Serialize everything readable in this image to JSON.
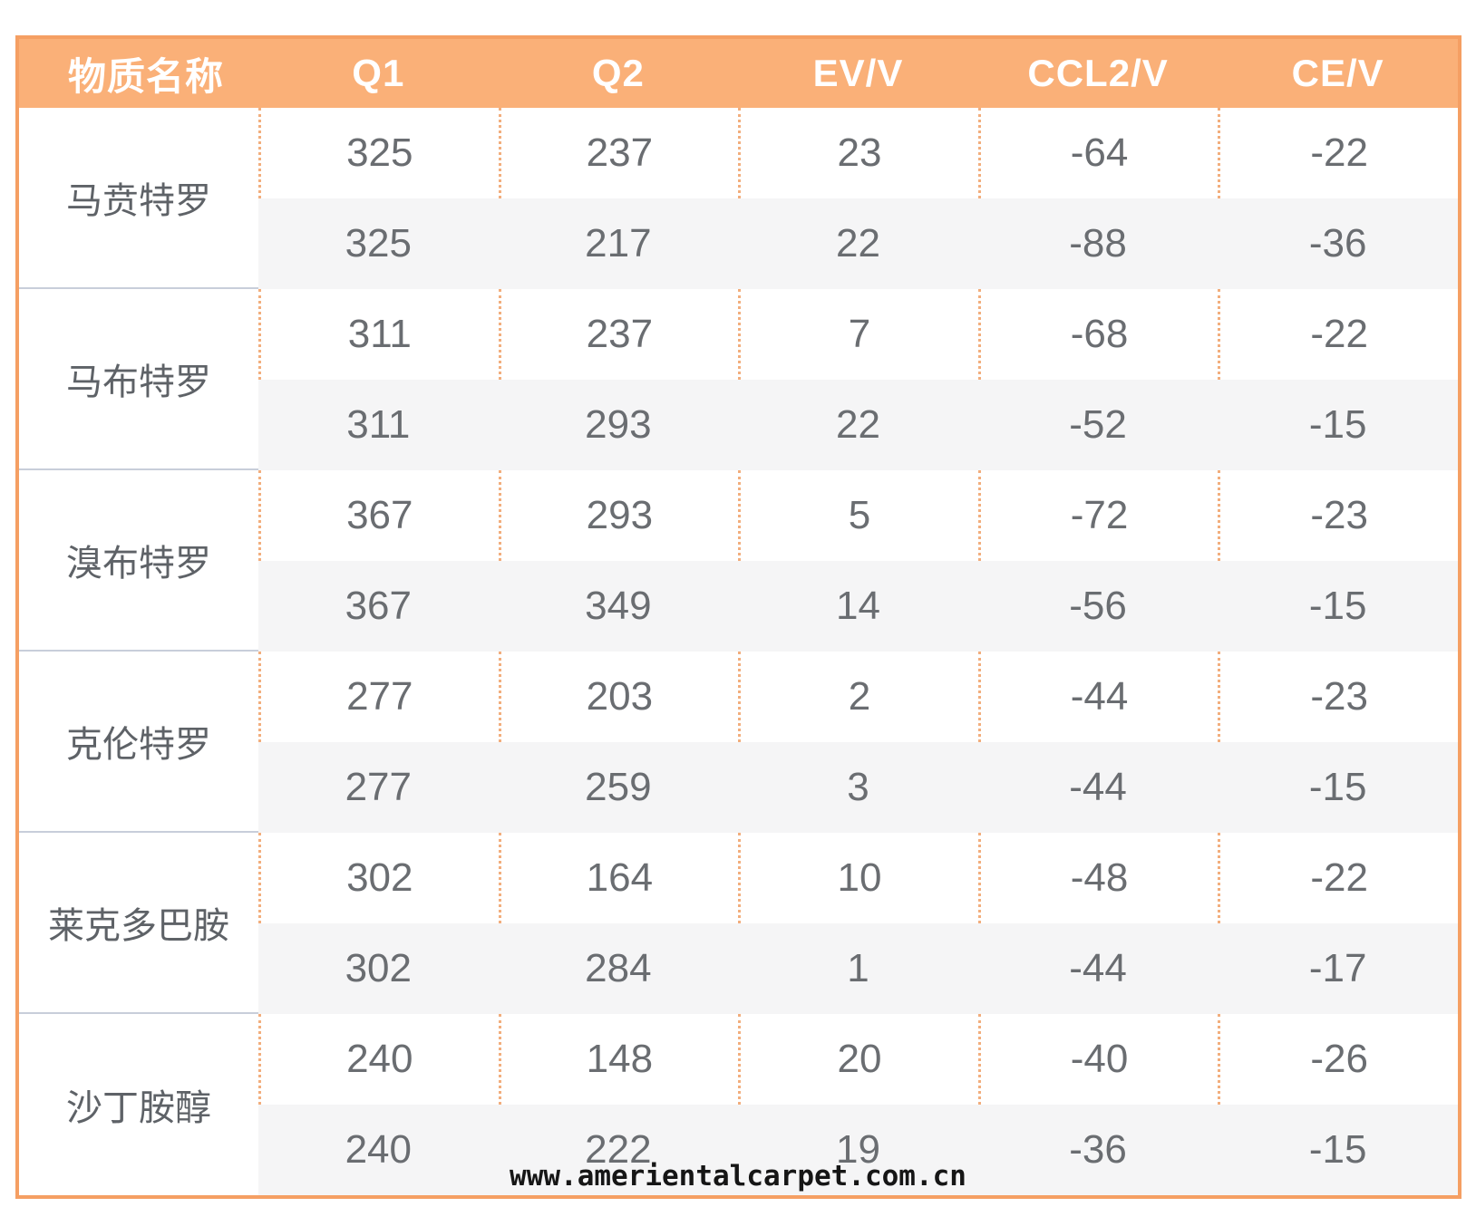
{
  "header": {
    "columns": [
      "物质名称",
      "Q1",
      "Q2",
      "EV/V",
      "CCL2/V",
      "CE/V"
    ]
  },
  "groups": [
    {
      "name": "马贲特罗",
      "rows": [
        [
          325,
          237,
          23,
          -64,
          -22
        ],
        [
          325,
          217,
          22,
          -88,
          -36
        ]
      ]
    },
    {
      "name": "马布特罗",
      "rows": [
        [
          311,
          237,
          7,
          -68,
          -22
        ],
        [
          311,
          293,
          22,
          -52,
          -15
        ]
      ]
    },
    {
      "name": "溴布特罗",
      "rows": [
        [
          367,
          293,
          5,
          -72,
          -23
        ],
        [
          367,
          349,
          14,
          -56,
          -15
        ]
      ]
    },
    {
      "name": "克伦特罗",
      "rows": [
        [
          277,
          203,
          2,
          -44,
          -23
        ],
        [
          277,
          259,
          3,
          -44,
          -15
        ]
      ]
    },
    {
      "name": "莱克多巴胺",
      "rows": [
        [
          302,
          164,
          10,
          -48,
          -22
        ],
        [
          302,
          284,
          1,
          -44,
          -17
        ]
      ]
    },
    {
      "name": "沙丁胺醇",
      "rows": [
        [
          240,
          148,
          20,
          -40,
          -26
        ],
        [
          240,
          222,
          19,
          -36,
          -15
        ]
      ]
    }
  ],
  "watermark": "www.amerientalcarpet.com.cn",
  "colors": {
    "header_bg": "#fab078",
    "table_border": "#f59f63",
    "dotted_divider": "#f2ae7d",
    "row_alt_bg": "#f5f5f6",
    "group_separator": "#c8ceda",
    "body_text": "#6a6d71",
    "header_text": "#ffffff",
    "watermark_text": "#161616"
  },
  "chart_data": {
    "type": "table",
    "columns": [
      "物质名称",
      "Q1",
      "Q2",
      "EV/V",
      "CCL2/V",
      "CE/V"
    ],
    "rows": [
      [
        "马贲特罗",
        325,
        237,
        23,
        -64,
        -22
      ],
      [
        "马贲特罗",
        325,
        217,
        22,
        -88,
        -36
      ],
      [
        "马布特罗",
        311,
        237,
        7,
        -68,
        -22
      ],
      [
        "马布特罗",
        311,
        293,
        22,
        -52,
        -15
      ],
      [
        "溴布特罗",
        367,
        293,
        5,
        -72,
        -23
      ],
      [
        "溴布特罗",
        367,
        349,
        14,
        -56,
        -15
      ],
      [
        "克伦特罗",
        277,
        203,
        2,
        -44,
        -23
      ],
      [
        "克伦特罗",
        277,
        259,
        3,
        -44,
        -15
      ],
      [
        "莱克多巴胺",
        302,
        164,
        10,
        -48,
        -22
      ],
      [
        "莱克多巴胺",
        302,
        284,
        1,
        -44,
        -17
      ],
      [
        "沙丁胺醇",
        240,
        148,
        20,
        -40,
        -26
      ],
      [
        "沙丁胺醇",
        240,
        222,
        19,
        -36,
        -15
      ]
    ],
    "notes": "Grouped table: each substance has two measurement rows; first row of each pair on white background with orange dotted column dividers, second row on light gray."
  }
}
